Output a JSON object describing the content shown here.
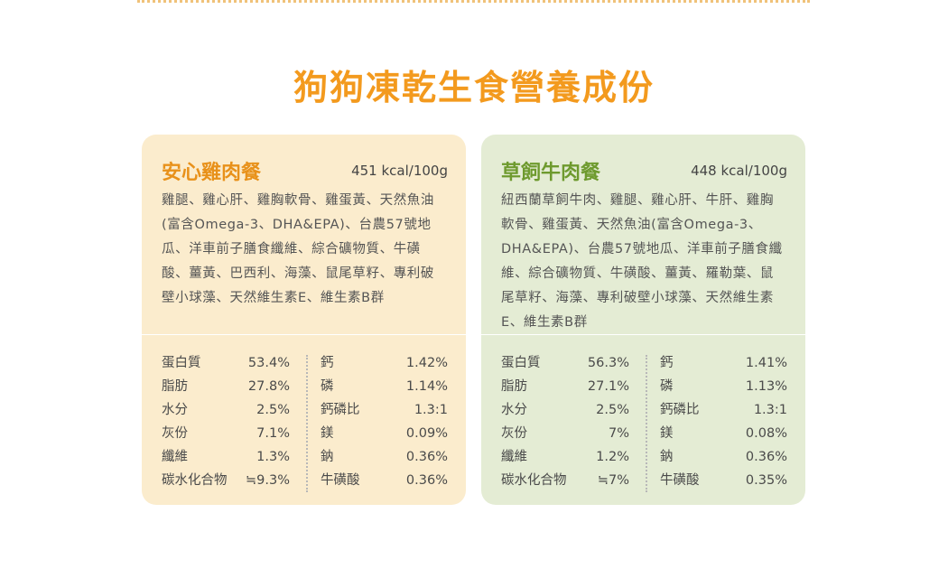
{
  "title": "狗狗凍乾生食營養成份",
  "cards": [
    {
      "name": "安心雞肉餐",
      "kcal": "451 kcal/100g",
      "ingredients": "雞腿、雞心肝、雞胸軟骨、雞蛋黃、天然魚油(富含Omega-3、DHA&EPA)、台農57號地瓜、洋車前子膳食纖維、綜合礦物質、牛磺酸、薑黃、巴西利、海藻、鼠尾草籽、專利破壁小球藻、天然維生素E、維生素B群",
      "left": [
        {
          "name": "蛋白質",
          "value": "53.4%"
        },
        {
          "name": "脂肪",
          "value": "27.8%"
        },
        {
          "name": "水分",
          "value": "2.5%"
        },
        {
          "name": "灰份",
          "value": "7.1%"
        },
        {
          "name": "纖維",
          "value": "1.3%"
        },
        {
          "name": "碳水化合物",
          "value": "≒9.3%"
        }
      ],
      "right": [
        {
          "name": "鈣",
          "value": "1.42%"
        },
        {
          "name": "磷",
          "value": "1.14%"
        },
        {
          "name": "鈣磷比",
          "value": "1.3:1"
        },
        {
          "name": "鎂",
          "value": "0.09%"
        },
        {
          "name": "鈉",
          "value": "0.36%"
        },
        {
          "name": "牛磺酸",
          "value": "0.36%"
        }
      ]
    },
    {
      "name": "草飼牛肉餐",
      "kcal": "448 kcal/100g",
      "ingredients": "紐西蘭草飼牛肉、雞腿、雞心肝、牛肝、雞胸軟骨、雞蛋黃、天然魚油(富含Omega-3、DHA&EPA)、台農57號地瓜、洋車前子膳食纖維、綜合礦物質、牛磺酸、薑黃、羅勒葉、鼠尾草籽、海藻、專利破壁小球藻、天然維生素E、維生素B群",
      "left": [
        {
          "name": "蛋白質",
          "value": "56.3%"
        },
        {
          "name": "脂肪",
          "value": "27.1%"
        },
        {
          "name": "水分",
          "value": "2.5%"
        },
        {
          "name": "灰份",
          "value": "7%"
        },
        {
          "name": "纖維",
          "value": "1.2%"
        },
        {
          "name": "碳水化合物",
          "value": "≒7%"
        }
      ],
      "right": [
        {
          "name": "鈣",
          "value": "1.41%"
        },
        {
          "name": "磷",
          "value": "1.13%"
        },
        {
          "name": "鈣磷比",
          "value": "1.3:1"
        },
        {
          "name": "鎂",
          "value": "0.08%"
        },
        {
          "name": "鈉",
          "value": "0.36%"
        },
        {
          "name": "牛磺酸",
          "value": "0.35%"
        }
      ]
    }
  ]
}
